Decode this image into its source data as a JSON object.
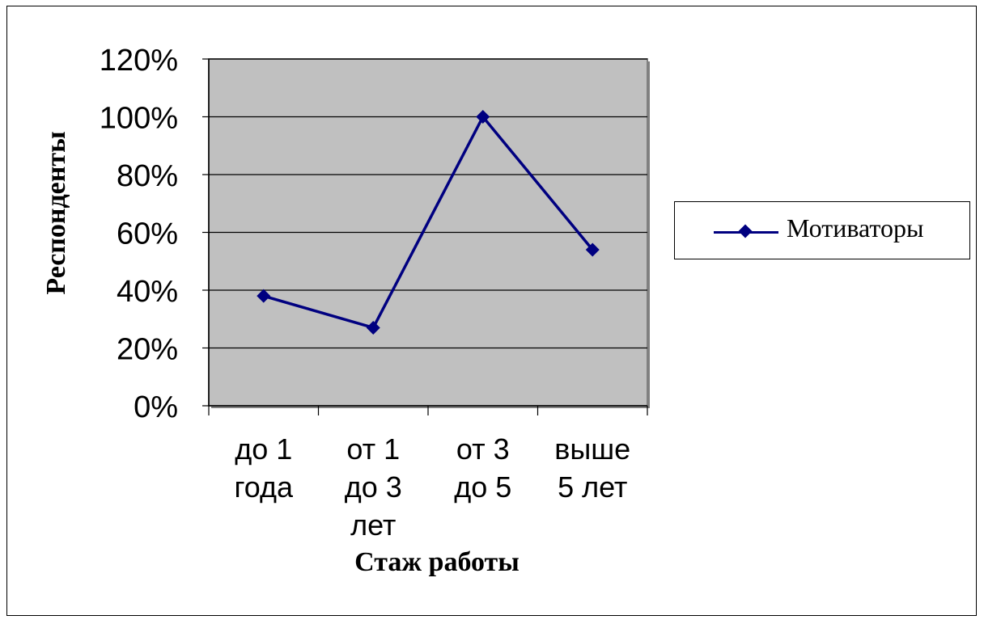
{
  "chart_data": {
    "type": "line",
    "categories": [
      [
        "до 1",
        "года"
      ],
      [
        "от 1",
        "до 3",
        "лет"
      ],
      [
        "от 3",
        "до 5"
      ],
      [
        "выше",
        "5 лет"
      ]
    ],
    "series": [
      {
        "name": "Мотиваторы",
        "values": [
          38,
          27,
          100,
          54
        ],
        "color": "#000080",
        "marker": "diamond"
      }
    ],
    "ylabel": "Респонденты",
    "xlabel": "Стаж работы",
    "ylim": [
      0,
      120
    ],
    "yticks": [
      "0%",
      "20%",
      "40%",
      "60%",
      "80%",
      "100%",
      "120%"
    ],
    "grid": true,
    "legend_position": "right",
    "plot_background": "#c0c0c0"
  }
}
